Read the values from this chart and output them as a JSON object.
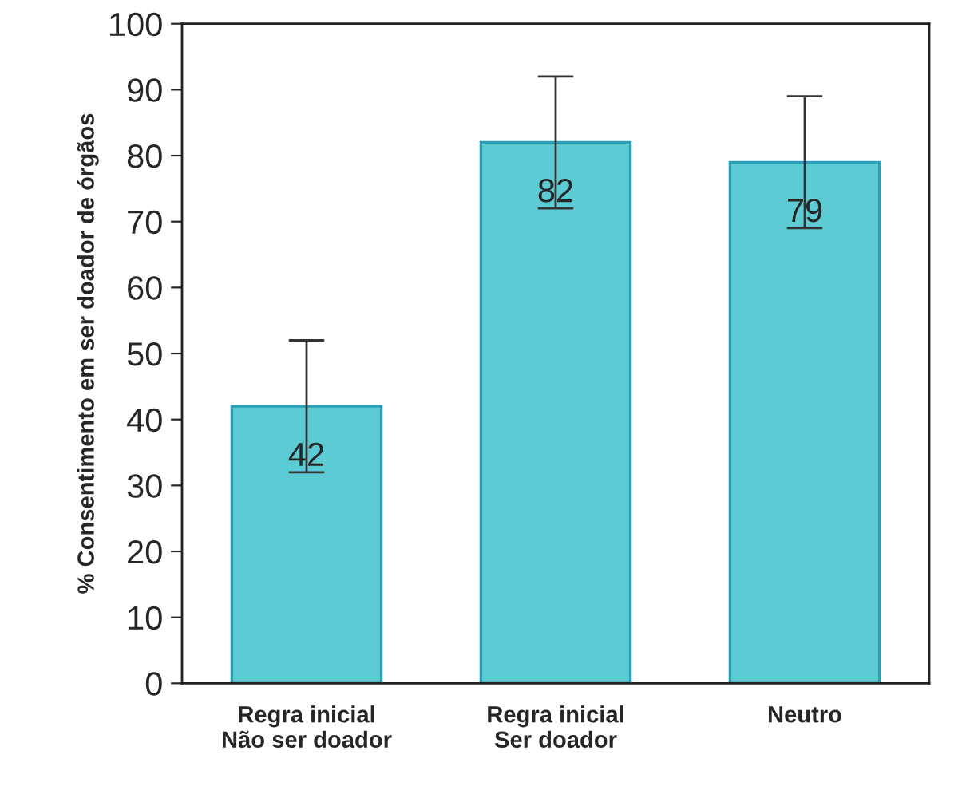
{
  "chart_data": {
    "type": "bar",
    "ylabel": "% Consentimento em ser doador de órgãos",
    "categories": [
      "Regra inicial\nNão ser doador",
      "Regra inicial\nSer doador",
      "Neutro"
    ],
    "values": [
      42,
      82,
      79
    ],
    "errors": [
      10,
      10,
      10
    ],
    "color": "#5ccbd3",
    "ylim": [
      0,
      100
    ],
    "yticks": [
      0,
      10,
      20,
      30,
      40,
      50,
      60,
      70,
      80,
      90,
      100
    ],
    "data_labels": true,
    "grid": false
  }
}
